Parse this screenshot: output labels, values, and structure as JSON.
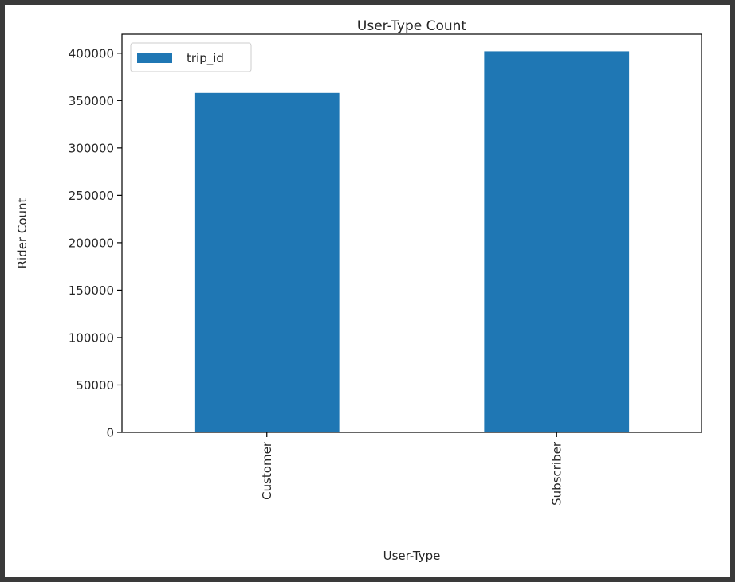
{
  "chart_data": {
    "type": "bar",
    "title": "User-Type Count",
    "xlabel": "User-Type",
    "ylabel": "Rider Count",
    "categories": [
      "Customer",
      "Subscriber"
    ],
    "series": [
      {
        "name": "trip_id",
        "values": [
          358000,
          402000
        ],
        "color": "#1f77b4"
      }
    ],
    "ylim": [
      0,
      420000
    ],
    "yticks": [
      0,
      50000,
      100000,
      150000,
      200000,
      250000,
      300000,
      350000,
      400000
    ],
    "ytick_labels": [
      "0",
      "50000",
      "100000",
      "150000",
      "200000",
      "250000",
      "300000",
      "350000",
      "400000"
    ],
    "xtick_rotation": 90,
    "grid": false,
    "legend": {
      "placement": "top-left"
    }
  }
}
